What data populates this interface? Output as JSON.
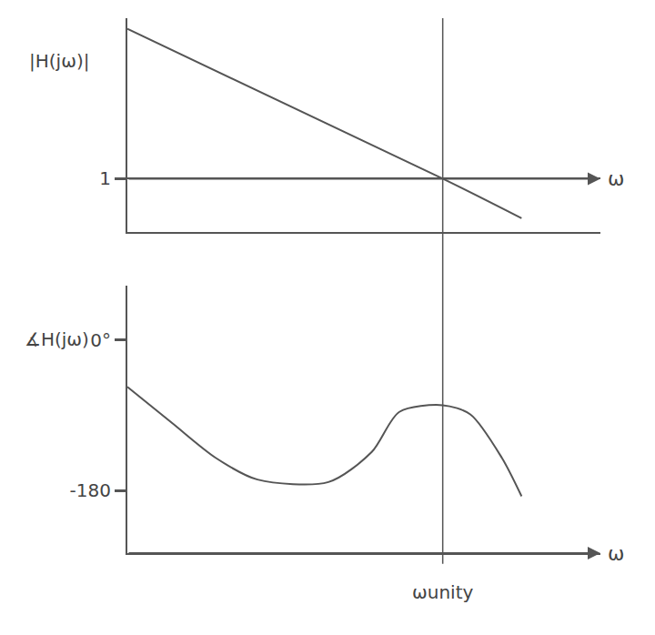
{
  "chart_data": [
    {
      "type": "line",
      "y_label": "|H(jω)|",
      "x_label": "ω",
      "x": [
        0,
        8,
        10
      ],
      "values": [
        2.4,
        1.0,
        0.63
      ],
      "xlim": [
        0,
        12
      ],
      "ylim": [
        0.5,
        2.5
      ],
      "yticks": [
        1
      ],
      "grid": true,
      "tick_labels": "y",
      "color": "#555555"
    },
    {
      "type": "line",
      "y_label": "∡H(jω)",
      "x_label": "ω",
      "x": [
        0,
        1.15,
        2.24,
        3.3,
        5.1,
        6.2,
        6.9,
        8.0,
        8.7,
        9.5,
        10
      ],
      "values": [
        -56,
        -100,
        -141,
        -167,
        -170,
        -134,
        -86,
        -78,
        -89,
        -141,
        -187
      ],
      "xlim": [
        0,
        12
      ],
      "ylim": [
        -255,
        65
      ],
      "yticks": [
        {
          "value": 0,
          "label": "0°"
        },
        -180
      ],
      "grid": false,
      "tick_labels": "y",
      "color": "#555555",
      "annotations": [
        {
          "x": 8,
          "label": "ωunity"
        }
      ]
    }
  ]
}
